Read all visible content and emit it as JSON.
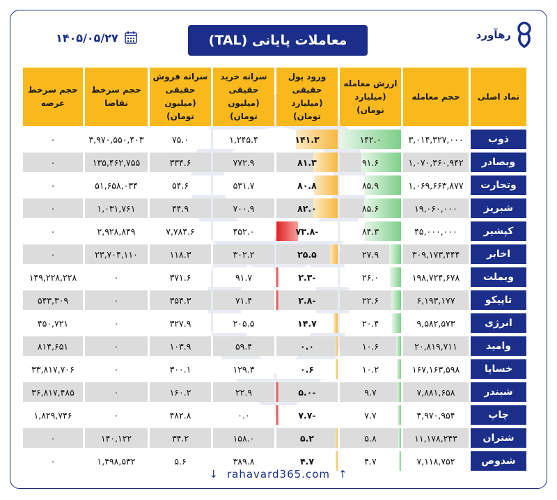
{
  "title": "معاملات پایانی (TAL)",
  "date": "۱۴۰۵/۰۵/۲۷",
  "brand": {
    "name": "رهآورد"
  },
  "footer": {
    "url": "rahavard365.com"
  },
  "headers": {
    "symbol": "نماد اصلی",
    "volume": "حجم معامله",
    "value": "ارزش معامله (میلیارد تومان)",
    "money_flow": "ورود پول حقیقی (میلیارد تومان)",
    "buy_per_capita": "سرانه خرید حقیقی (میلیون تومان)",
    "sell_per_capita": "سرانه فروش حقیقی (میلیون تومان)",
    "bid_queue": "حجم سرخط تقاضا",
    "ask_queue": "حجم سرخط عرضه"
  },
  "colors": {
    "accent": "#1b2e8a",
    "header": "#f9b91c",
    "value_bar": "#7ecf8a",
    "inflow_bar": "#f5b942",
    "outflow_bar": "#e02020"
  },
  "rows": [
    {
      "symbol": "ذوب",
      "volume": "۳,۰۱۴,۳۲۷,۰۰۰",
      "value": "۱۴۲.۰",
      "value_num": 142.0,
      "money_flow": "۱۴۱.۳",
      "money_flow_num": 141.3,
      "buy": "۱,۲۴۵.۴",
      "sell": "۷۵.۰",
      "bid": "۳,۹۷۰,۵۵۰,۴۰۳",
      "ask": "۰"
    },
    {
      "symbol": "وبصادر",
      "volume": "۱,۰۷۰,۳۶۰,۹۴۲",
      "value": "۹۱.۶",
      "value_num": 91.6,
      "money_flow": "۸۱.۳",
      "money_flow_num": 81.3,
      "buy": "۷۷۲.۹",
      "sell": "۳۳۴.۶",
      "bid": "۱۳۵,۴۶۲,۷۵۵",
      "ask": "۰"
    },
    {
      "symbol": "وتجارت",
      "volume": "۱,۰۶۹,۶۶۳,۸۷۷",
      "value": "۸۵.۹",
      "value_num": 85.9,
      "money_flow": "۸۰.۸",
      "money_flow_num": 80.8,
      "buy": "۵۳۱.۷",
      "sell": "۵۴.۶",
      "bid": "۵۱,۶۵۸,۰۳۴",
      "ask": "۰"
    },
    {
      "symbol": "شبریز",
      "volume": "۱۹,۰۶۰,۰۰۰",
      "value": "۸۵.۶",
      "value_num": 85.6,
      "money_flow": "۸۲.۰",
      "money_flow_num": 82.0,
      "buy": "۷۰۰.۹",
      "sell": "۴۴.۹",
      "bid": "۱,۰۳۱,۷۶۱",
      "ask": "۰"
    },
    {
      "symbol": "کپشیر",
      "volume": "۴۵,۰۰۰,۰۰۰",
      "value": "۸۴.۳",
      "value_num": 84.3,
      "money_flow": "-۷۳.۸",
      "money_flow_num": -73.8,
      "buy": "۴۵۲.۰",
      "sell": "۷,۷۸۴.۶",
      "bid": "۲,۹۲۸,۸۴۹",
      "ask": "۰"
    },
    {
      "symbol": "اخابر",
      "volume": "۳۰۹,۱۷۳,۴۴۴",
      "value": "۲۷.۹",
      "value_num": 27.9,
      "money_flow": "۲۵.۵",
      "money_flow_num": 25.5,
      "buy": "۳۰۲.۲",
      "sell": "۱۱۸.۳",
      "bid": "۲۳,۷۰۴,۱۱۰",
      "ask": "۰"
    },
    {
      "symbol": "وبملت",
      "volume": "۱۹۸,۷۲۴,۶۷۸",
      "value": "۲۶.۰",
      "value_num": 26.0,
      "money_flow": "-۲.۳",
      "money_flow_num": -2.3,
      "buy": "۹۱.۷",
      "sell": "۳۷۱.۶",
      "bid": "۰",
      "ask": "۱۴۹,۲۲۸,۲۲۸"
    },
    {
      "symbol": "تاپیکو",
      "volume": "۶,۱۹۳,۱۷۷",
      "value": "۲۲.۶",
      "value_num": 22.6,
      "money_flow": "-۲.۸",
      "money_flow_num": -2.8,
      "buy": "۷۱.۴",
      "sell": "۳۵۴.۳",
      "bid": "۰",
      "ask": "۵۴۳,۳۰۹"
    },
    {
      "symbol": "انرژی",
      "volume": "۹,۵۸۲,۵۷۳",
      "value": "۲۰.۴",
      "value_num": 20.4,
      "money_flow": "۱۴.۷",
      "money_flow_num": 14.7,
      "buy": "۲۰۵.۵",
      "sell": "۳۲۷.۹",
      "bid": "۰",
      "ask": "۴۵۰,۷۲۱"
    },
    {
      "symbol": "وامید",
      "volume": "۲۰,۸۱۹,۷۱۱",
      "value": "۱۰.۶",
      "value_num": 10.6,
      "money_flow": "۰.۰",
      "money_flow_num": 0.0,
      "buy": "۵۹.۴",
      "sell": "۱۰۳.۹",
      "bid": "۰",
      "ask": "۸۱۴,۶۵۱"
    },
    {
      "symbol": "خساپا",
      "volume": "۱۶۷,۱۶۳,۵۹۸",
      "value": "۱۰.۲",
      "value_num": 10.2,
      "money_flow": "۰.۶",
      "money_flow_num": 0.6,
      "buy": "۱۲۹.۳",
      "sell": "۳۰۰.۱",
      "bid": "۰",
      "ask": "۳۳,۸۱۷,۷۰۶"
    },
    {
      "symbol": "شبندر",
      "volume": "۷,۸۸۱,۶۵۸",
      "value": "۹.۷",
      "value_num": 9.7,
      "money_flow": "-۵.۰",
      "money_flow_num": -5.0,
      "buy": "۲۲.۹",
      "sell": "۱۶۰.۲",
      "bid": "۰",
      "ask": "۳۶,۸۱۷,۴۸۵"
    },
    {
      "symbol": "چاپ",
      "volume": "۴,۹۷۰,۹۵۴",
      "value": "۷.۷",
      "value_num": 7.7,
      "money_flow": "-۷.۷",
      "money_flow_num": -7.7,
      "buy": "۰.۰",
      "sell": "۴۸۲.۸",
      "bid": "۰",
      "ask": "۱,۸۲۹,۷۴۶"
    },
    {
      "symbol": "شتران",
      "volume": "۱۱,۱۷۸,۲۴۳",
      "value": "۵.۸",
      "value_num": 5.8,
      "money_flow": "۵.۲",
      "money_flow_num": 5.2,
      "buy": "۱۵۸.۰",
      "sell": "۳۴.۲",
      "bid": "۱۴۰,۱۲۲",
      "ask": "۰"
    },
    {
      "symbol": "شدوص",
      "volume": "۷,۱۱۸,۷۵۲",
      "value": "۴.۷",
      "value_num": 4.7,
      "money_flow": "۴.۷",
      "money_flow_num": 4.7,
      "buy": "۳۸۹.۸",
      "sell": "۵.۶",
      "bid": "۱,۴۹۸,۵۳۲",
      "ask": "۰"
    }
  ]
}
